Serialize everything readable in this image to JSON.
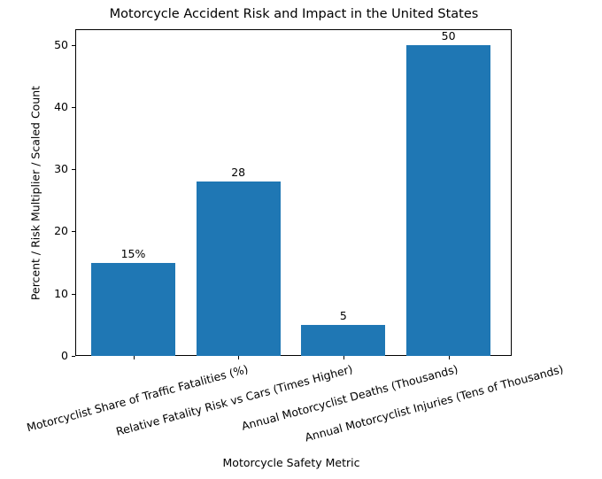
{
  "chart_data": {
    "type": "bar",
    "title": "Motorcycle Accident Risk and Impact in the United States",
    "xlabel": "Motorcycle Safety Metric",
    "ylabel": "Percent / Risk Multiplier / Scaled Count",
    "categories": [
      "Motorcyclist Share of Traffic Fatalities (%)",
      "Relative Fatality Risk vs Cars (Times Higher)",
      "Annual Motorcyclist Deaths (Thousands)",
      "Annual Motorcyclist Injuries (Tens of Thousands)"
    ],
    "values": [
      15,
      28,
      5,
      50
    ],
    "data_labels": [
      "15%",
      "28",
      "5",
      "50"
    ],
    "ylim": [
      0,
      52.5
    ],
    "yticks": [
      0,
      10,
      20,
      30,
      40,
      50
    ],
    "bar_color": "#1f77b4",
    "grid": false,
    "legend": null
  },
  "yticks": [
    "0",
    "10",
    "20",
    "30",
    "40",
    "50"
  ]
}
